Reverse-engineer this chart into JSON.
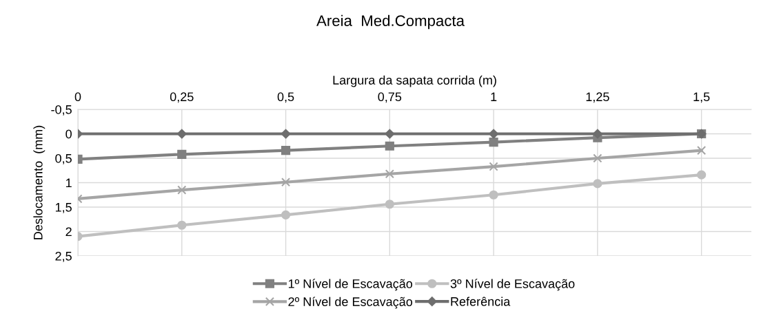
{
  "chart_data": {
    "type": "line",
    "title": "Areia  Med.Compacta",
    "xlabel": "Largura da sapata corrida (m)",
    "ylabel": "Deslocamento  (mm)",
    "x": [
      0,
      0.25,
      0.5,
      0.75,
      1,
      1.25,
      1.5
    ],
    "xlim": [
      0,
      1.62
    ],
    "xticks": [
      0,
      {
        "value": 0.25,
        "label": "0,25"
      },
      {
        "value": 0.5,
        "label": "0,5"
      },
      {
        "value": 0.75,
        "label": "0,75"
      },
      1,
      {
        "value": 1.25,
        "label": "1,25"
      },
      {
        "value": 1.5,
        "label": "1,5"
      }
    ],
    "ylim": [
      2.5,
      -0.5
    ],
    "yticks": [
      {
        "value": -0.5,
        "label": "-0,5"
      },
      0,
      {
        "value": 0.5,
        "label": "0,5"
      },
      1,
      {
        "value": 1.5,
        "label": "1,5"
      },
      2,
      {
        "value": 2.5,
        "label": "2,5"
      }
    ],
    "grid": true,
    "legend": "bottom",
    "line_style": "solid",
    "series": [
      {
        "name": "1º Nível de Escavação",
        "color": "#808080",
        "marker": "square",
        "values": [
          0.52,
          0.42,
          0.34,
          0.25,
          0.17,
          0.08,
          0
        ]
      },
      {
        "name": "2º Nível de Escavação",
        "color": "#a5a5a5",
        "marker": "cross",
        "values": [
          1.33,
          1.15,
          0.99,
          0.82,
          0.67,
          0.5,
          0.34
        ]
      },
      {
        "name": "3º Nível de Escavação",
        "color": "#bfbfbf",
        "marker": "circle",
        "values": [
          2.1,
          1.87,
          1.66,
          1.44,
          1.25,
          1.02,
          0.84
        ]
      },
      {
        "name": "Referência",
        "color": "#6e6e6e",
        "marker": "diamond",
        "values": [
          0,
          0,
          0,
          0,
          0,
          0,
          0
        ]
      }
    ]
  }
}
